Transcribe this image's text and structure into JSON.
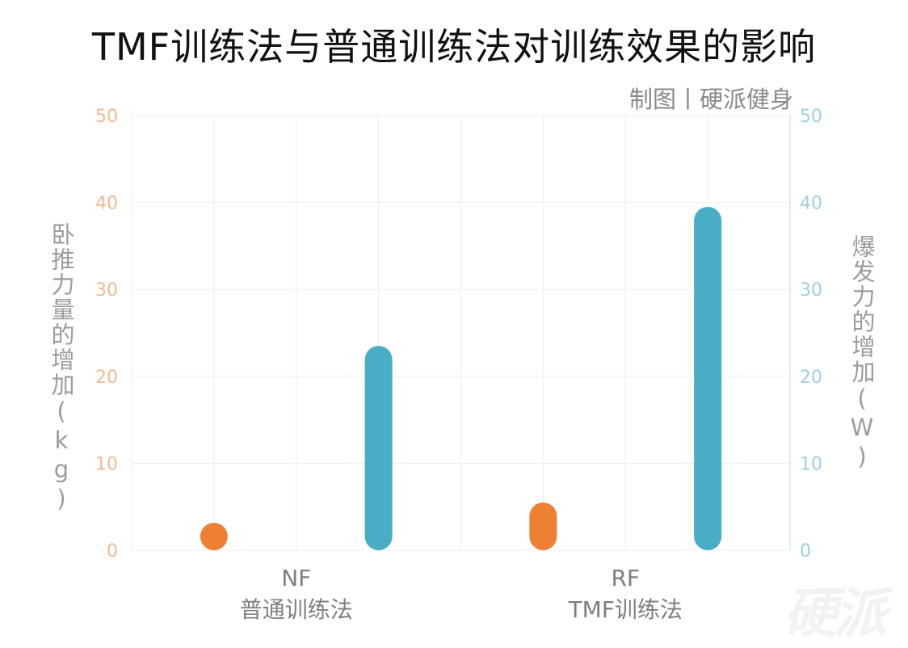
{
  "title": "TMF训练法与普通训练法对训练效果的影响",
  "credit": "制图丨硬派健身",
  "watermark": "硬派",
  "chart_data": {
    "type": "bar",
    "title": "TMF训练法与普通训练法对训练效果的影响",
    "categories": [
      {
        "code": "NF",
        "name": "普通训练法"
      },
      {
        "code": "RF",
        "name": "TMF训练法"
      }
    ],
    "y_left": {
      "label": "卧推力量的增加(kg)",
      "ylim": [
        0,
        50
      ],
      "ticks": [
        0,
        10,
        20,
        30,
        40,
        50
      ],
      "color": "#f2b98f"
    },
    "y_right": {
      "label": "爆发力的增加(W)",
      "ylim": [
        0,
        50
      ],
      "ticks": [
        0,
        10,
        20,
        30,
        40,
        50
      ],
      "color": "#9dd0df"
    },
    "series": [
      {
        "axis": "left",
        "color": "#ee8033",
        "values": [
          1.8,
          5.5
        ]
      },
      {
        "axis": "right",
        "color": "#4aadc6",
        "values": [
          23.5,
          39.5
        ]
      }
    ],
    "grid": true,
    "legend": "none"
  }
}
